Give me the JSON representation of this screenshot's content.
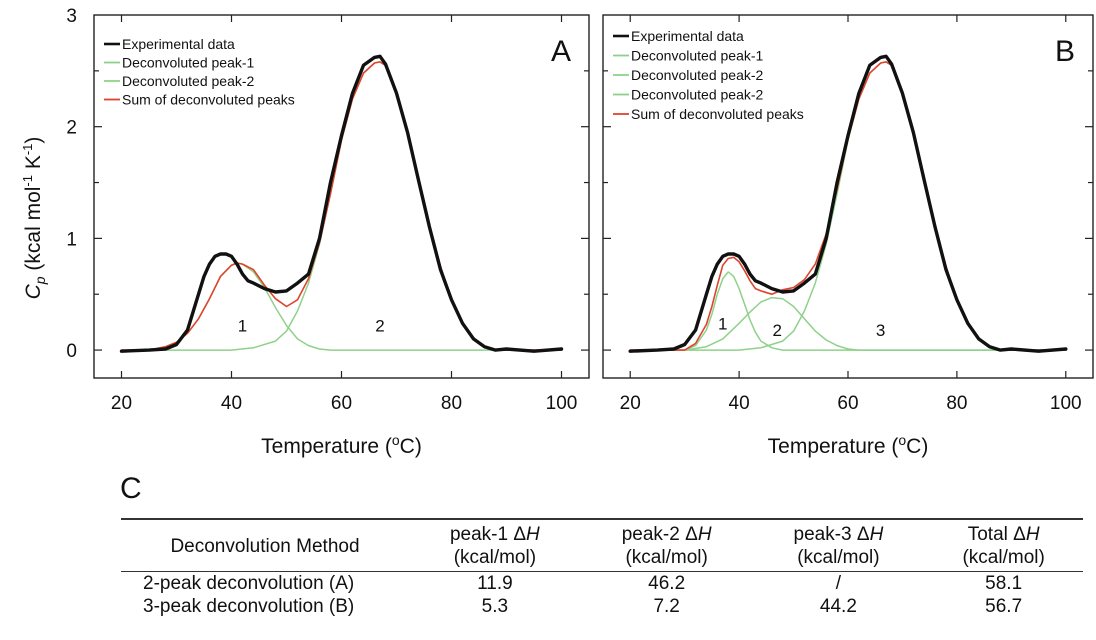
{
  "chart_data": [
    {
      "type": "line",
      "panel": "A",
      "xlabel": "Temperature (oC)",
      "ylabel": "Cp (kcal mol-1 K-1)",
      "xlim": [
        15,
        105
      ],
      "ylim": [
        -0.25,
        3
      ],
      "xticks": [
        20,
        40,
        60,
        80,
        100
      ],
      "yticks": [
        0,
        1,
        2,
        3
      ],
      "legend_position": "top-left",
      "grid": false,
      "series": [
        {
          "name": "Experimental data",
          "color": "#111111",
          "x": [
            20,
            25,
            28,
            30,
            32,
            34,
            35,
            36,
            37,
            38,
            39,
            40,
            41,
            42,
            43,
            44,
            46,
            48,
            50,
            52,
            54,
            56,
            58,
            60,
            62,
            64,
            66,
            67,
            68,
            70,
            72,
            74,
            76,
            78,
            80,
            82,
            84,
            86,
            88,
            90,
            95,
            100
          ],
          "y": [
            -0.01,
            0.0,
            0.01,
            0.05,
            0.18,
            0.5,
            0.66,
            0.77,
            0.84,
            0.86,
            0.86,
            0.84,
            0.77,
            0.68,
            0.62,
            0.6,
            0.55,
            0.52,
            0.53,
            0.6,
            0.68,
            1.0,
            1.5,
            1.92,
            2.3,
            2.55,
            2.62,
            2.63,
            2.56,
            2.3,
            1.95,
            1.52,
            1.1,
            0.72,
            0.45,
            0.24,
            0.1,
            0.03,
            0.0,
            0.01,
            -0.01,
            0.01
          ]
        },
        {
          "name": "Deconvoluted peak-1",
          "color": "#8fd18b",
          "x": [
            20,
            25,
            28,
            30,
            32,
            34,
            36,
            38,
            40,
            41,
            42,
            44,
            46,
            48,
            50,
            52,
            54,
            56,
            58,
            60,
            65,
            70,
            80,
            90,
            100
          ],
          "y": [
            0.0,
            0.0,
            0.03,
            0.07,
            0.15,
            0.28,
            0.46,
            0.66,
            0.76,
            0.78,
            0.77,
            0.7,
            0.56,
            0.38,
            0.22,
            0.1,
            0.04,
            0.01,
            0.0,
            0.0,
            0.0,
            0.0,
            0.0,
            0.0,
            0.0
          ]
        },
        {
          "name": "Deconvoluted peak-2",
          "color": "#8fd18b",
          "x": [
            20,
            40,
            44,
            48,
            50,
            52,
            54,
            56,
            58,
            60,
            62,
            64,
            66,
            67,
            68,
            70,
            72,
            74,
            76,
            78,
            80,
            82,
            84,
            86,
            88,
            90,
            100
          ],
          "y": [
            0.0,
            0.0,
            0.02,
            0.08,
            0.17,
            0.35,
            0.6,
            0.95,
            1.4,
            1.88,
            2.25,
            2.48,
            2.57,
            2.58,
            2.55,
            2.32,
            1.95,
            1.55,
            1.12,
            0.75,
            0.45,
            0.24,
            0.1,
            0.03,
            0.0,
            0.0,
            0.0
          ]
        },
        {
          "name": "Sum of deconvoluted peaks",
          "color": "#e0432b",
          "x": [
            20,
            25,
            28,
            30,
            32,
            34,
            36,
            38,
            40,
            41,
            42,
            44,
            46,
            48,
            50,
            52,
            54,
            56,
            58,
            60,
            62,
            64,
            66,
            67,
            68,
            70,
            72,
            74,
            76,
            78,
            80,
            82,
            84,
            86,
            88,
            90,
            100
          ],
          "y": [
            0.0,
            0.0,
            0.03,
            0.07,
            0.15,
            0.28,
            0.46,
            0.66,
            0.76,
            0.78,
            0.77,
            0.72,
            0.58,
            0.46,
            0.39,
            0.45,
            0.64,
            0.96,
            1.4,
            1.88,
            2.25,
            2.48,
            2.57,
            2.58,
            2.55,
            2.32,
            1.95,
            1.55,
            1.12,
            0.75,
            0.45,
            0.24,
            0.1,
            0.03,
            0.0,
            0.0,
            0.0
          ]
        }
      ],
      "peak_labels": [
        {
          "text": "1",
          "x": 42,
          "y": 0.22
        },
        {
          "text": "2",
          "x": 67,
          "y": 0.22
        }
      ]
    },
    {
      "type": "line",
      "panel": "B",
      "xlabel": "Temperature (oC)",
      "ylabel": "",
      "xlim": [
        15,
        105
      ],
      "ylim": [
        -0.25,
        3
      ],
      "xticks": [
        20,
        40,
        60,
        80,
        100
      ],
      "yticks": [
        0,
        1,
        2,
        3
      ],
      "legend_position": "top-left",
      "grid": false,
      "series": [
        {
          "name": "Experimental data",
          "color": "#111111",
          "x": [
            20,
            25,
            28,
            30,
            32,
            34,
            35,
            36,
            37,
            38,
            39,
            40,
            41,
            42,
            43,
            44,
            46,
            48,
            50,
            52,
            54,
            56,
            58,
            60,
            62,
            64,
            66,
            67,
            68,
            70,
            72,
            74,
            76,
            78,
            80,
            82,
            84,
            86,
            88,
            90,
            95,
            100
          ],
          "y": [
            -0.01,
            0.0,
            0.01,
            0.05,
            0.18,
            0.5,
            0.66,
            0.77,
            0.84,
            0.86,
            0.86,
            0.84,
            0.77,
            0.68,
            0.62,
            0.6,
            0.55,
            0.52,
            0.53,
            0.6,
            0.68,
            1.0,
            1.5,
            1.92,
            2.3,
            2.55,
            2.62,
            2.63,
            2.56,
            2.3,
            1.95,
            1.52,
            1.1,
            0.72,
            0.45,
            0.24,
            0.1,
            0.03,
            0.0,
            0.01,
            -0.01,
            0.01
          ]
        },
        {
          "name": "Deconvoluted peak-1",
          "color": "#8fd18b",
          "x": [
            20,
            30,
            32,
            34,
            35,
            36,
            37,
            38,
            39,
            40,
            41,
            42,
            43,
            44,
            46,
            48,
            50,
            60,
            100
          ],
          "y": [
            0.0,
            0.0,
            0.04,
            0.18,
            0.32,
            0.5,
            0.64,
            0.7,
            0.66,
            0.55,
            0.41,
            0.27,
            0.16,
            0.08,
            0.02,
            0.0,
            0.0,
            0.0,
            0.0
          ]
        },
        {
          "name": "Deconvoluted peak-2",
          "color": "#8fd18b",
          "x": [
            20,
            30,
            34,
            37,
            40,
            42,
            44,
            46,
            48,
            50,
            52,
            54,
            56,
            58,
            60,
            62,
            100
          ],
          "y": [
            0.0,
            0.0,
            0.03,
            0.1,
            0.24,
            0.34,
            0.43,
            0.47,
            0.46,
            0.39,
            0.28,
            0.17,
            0.09,
            0.04,
            0.01,
            0.0,
            0.0
          ]
        },
        {
          "name": "Deconvoluted peak-2",
          "color": "#8fd18b",
          "x": [
            20,
            40,
            44,
            48,
            50,
            52,
            54,
            56,
            58,
            60,
            62,
            64,
            66,
            67,
            68,
            70,
            72,
            74,
            76,
            78,
            80,
            82,
            84,
            86,
            88,
            90,
            100
          ],
          "y": [
            0.0,
            0.0,
            0.02,
            0.08,
            0.17,
            0.35,
            0.6,
            0.95,
            1.4,
            1.88,
            2.25,
            2.48,
            2.57,
            2.58,
            2.55,
            2.32,
            1.95,
            1.55,
            1.12,
            0.75,
            0.45,
            0.24,
            0.1,
            0.03,
            0.0,
            0.0,
            0.0
          ]
        },
        {
          "name": "Sum of deconvoluted peaks",
          "color": "#e0432b",
          "x": [
            20,
            25,
            28,
            30,
            32,
            34,
            35,
            36,
            37,
            38,
            39,
            40,
            41,
            42,
            43,
            44,
            46,
            48,
            50,
            52,
            54,
            56,
            58,
            60,
            62,
            64,
            66,
            67,
            68,
            70,
            72,
            74,
            76,
            78,
            80,
            82,
            84,
            86,
            88,
            90,
            100
          ],
          "y": [
            0.0,
            0.0,
            0.0,
            0.0,
            0.06,
            0.23,
            0.39,
            0.58,
            0.76,
            0.82,
            0.83,
            0.79,
            0.71,
            0.62,
            0.55,
            0.53,
            0.5,
            0.54,
            0.56,
            0.63,
            0.77,
            1.04,
            1.44,
            1.89,
            2.25,
            2.48,
            2.57,
            2.58,
            2.55,
            2.32,
            1.95,
            1.55,
            1.12,
            0.75,
            0.45,
            0.24,
            0.1,
            0.03,
            0.0,
            0.0,
            0.0
          ]
        }
      ],
      "peak_labels": [
        {
          "text": "1",
          "x": 37,
          "y": 0.24
        },
        {
          "text": "2",
          "x": 47,
          "y": 0.18
        },
        {
          "text": "3",
          "x": 66,
          "y": 0.18
        }
      ]
    },
    {
      "type": "table",
      "panel": "C",
      "columns": [
        "Deconvolution Method",
        "peak-1 ΔH (kcal/mol)",
        "peak-2 ΔH (kcal/mol)",
        "peak-3 ΔH (kcal/mol)",
        "Total ΔH (kcal/mol)"
      ],
      "rows": [
        [
          "2-peak deconvolution (A)",
          "11.9",
          "46.2",
          "/",
          "58.1"
        ],
        [
          "3-peak deconvolution (B)",
          "5.3",
          "7.2",
          "44.2",
          "56.7"
        ]
      ]
    }
  ],
  "panel_a": {
    "letter": "A"
  },
  "panel_b": {
    "letter": "B"
  },
  "table": {
    "letter": "C",
    "header": {
      "method": "Deconvolution Method",
      "peak1": {
        "main": "peak-1 ",
        "sym": "H",
        "units": "(kcal/mol)"
      },
      "peak2": {
        "main": "peak-2 ",
        "sym": "H",
        "units": "(kcal/mol)"
      },
      "peak3": {
        "main": "peak-3 ",
        "sym": "H",
        "units": "(kcal/mol)"
      },
      "total": {
        "main": "Total ",
        "sym": "H",
        "units": "(kcal/mol)"
      }
    },
    "rows": [
      {
        "method": "2-peak deconvolution (A)",
        "p1": "11.9",
        "p2": "46.2",
        "p3": "/",
        "total": "58.1"
      },
      {
        "method": "3-peak deconvolution (B)",
        "p1": "5.3",
        "p2": "7.2",
        "p3": "44.2",
        "total": "56.7"
      }
    ]
  }
}
